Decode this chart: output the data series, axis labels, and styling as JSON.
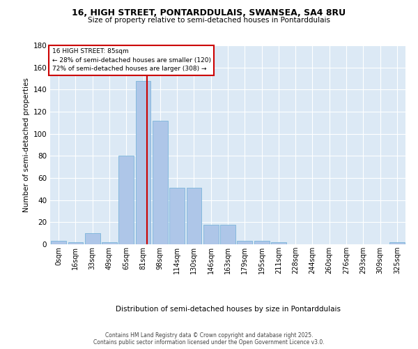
{
  "title_line1": "16, HIGH STREET, PONTARDDULAIS, SWANSEA, SA4 8RU",
  "title_line2": "Size of property relative to semi-detached houses in Pontarddulais",
  "xlabel": "Distribution of semi-detached houses by size in Pontarddulais",
  "ylabel": "Number of semi-detached properties",
  "categories": [
    "0sqm",
    "16sqm",
    "33sqm",
    "49sqm",
    "65sqm",
    "81sqm",
    "98sqm",
    "114sqm",
    "130sqm",
    "146sqm",
    "163sqm",
    "179sqm",
    "195sqm",
    "211sqm",
    "228sqm",
    "244sqm",
    "260sqm",
    "276sqm",
    "293sqm",
    "309sqm",
    "325sqm"
  ],
  "values": [
    3,
    2,
    10,
    2,
    80,
    148,
    112,
    51,
    51,
    18,
    18,
    3,
    3,
    2,
    0,
    0,
    0,
    0,
    0,
    0,
    2
  ],
  "bar_color": "#aec6e8",
  "bar_edge_color": "#6baed6",
  "background_color": "#dce9f5",
  "grid_color": "#ffffff",
  "annotation_text_line1": "16 HIGH STREET: 85sqm",
  "annotation_text_line2": "← 28% of semi-detached houses are smaller (120)",
  "annotation_text_line3": "72% of semi-detached houses are larger (308) →",
  "annotation_box_facecolor": "#ffffff",
  "annotation_box_edgecolor": "#cc0000",
  "vline_color": "#cc0000",
  "ylim": [
    0,
    180
  ],
  "yticks": [
    0,
    20,
    40,
    60,
    80,
    100,
    120,
    140,
    160,
    180
  ],
  "footer_line1": "Contains HM Land Registry data © Crown copyright and database right 2025.",
  "footer_line2": "Contains public sector information licensed under the Open Government Licence v3.0."
}
